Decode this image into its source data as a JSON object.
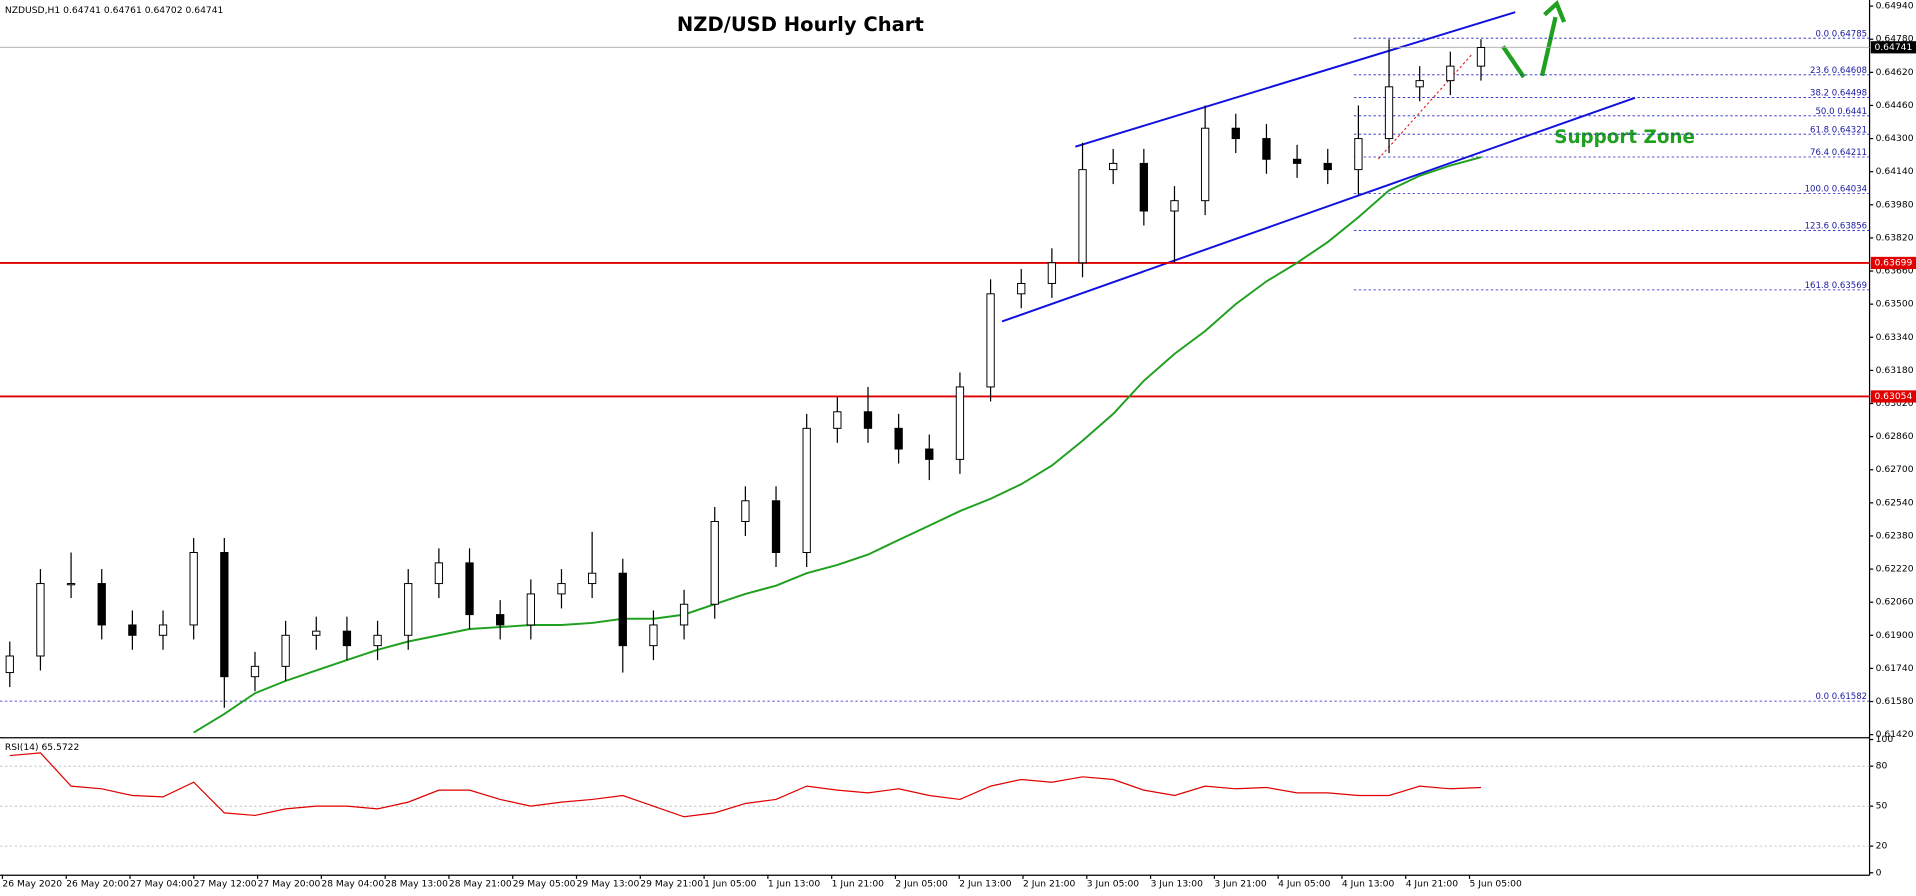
{
  "chart_data": {
    "type": "candlestick",
    "title": "NZD/USD Hourly Chart",
    "header": "NZDUSD,H1",
    "ohlc": [
      0.64741,
      0.64761,
      0.64702,
      0.64741
    ],
    "annotation": "Support Zone",
    "categories": [
      "26 May 2020",
      "26 May 20:00",
      "27 May 04:00",
      "27 May 12:00",
      "27 May 20:00",
      "28 May 04:00",
      "28 May 13:00",
      "28 May 21:00",
      "29 May 05:00",
      "29 May 13:00",
      "29 May 21:00",
      "1 Jun 05:00",
      "1 Jun 13:00",
      "1 Jun 21:00",
      "2 Jun 05:00",
      "2 Jun 13:00",
      "2 Jun 21:00",
      "3 Jun 05:00",
      "3 Jun 13:00",
      "3 Jun 21:00",
      "4 Jun 05:00",
      "4 Jun 13:00",
      "4 Jun 21:00",
      "5 Jun 05:00"
    ],
    "open": [
      0.6172,
      0.618,
      0.6215,
      0.6215,
      0.6195,
      0.619,
      0.6195,
      0.623,
      0.617,
      0.6175,
      0.619,
      0.6192,
      0.6185,
      0.619,
      0.6215,
      0.6225,
      0.62,
      0.6195,
      0.621,
      0.6215,
      0.622,
      0.6185,
      0.6195,
      0.6205,
      0.6245,
      0.6255,
      0.623,
      0.629,
      0.6298,
      0.629,
      0.628,
      0.6275,
      0.631,
      0.6355,
      0.636,
      0.637,
      0.6415,
      0.6418,
      0.6395,
      0.64,
      0.6435,
      0.643,
      0.642,
      0.6418,
      0.6415,
      0.643,
      0.6455,
      0.6458,
      0.6465
    ],
    "high": [
      0.6187,
      0.6222,
      0.623,
      0.6222,
      0.6202,
      0.6202,
      0.6237,
      0.6237,
      0.6182,
      0.6197,
      0.6199,
      0.6199,
      0.6197,
      0.6222,
      0.6232,
      0.6232,
      0.6207,
      0.6217,
      0.6222,
      0.624,
      0.6227,
      0.6202,
      0.6212,
      0.6252,
      0.6262,
      0.6262,
      0.6297,
      0.6305,
      0.631,
      0.6297,
      0.6287,
      0.6317,
      0.6362,
      0.6367,
      0.6377,
      0.6428,
      0.6425,
      0.6425,
      0.6407,
      0.6446,
      0.6442,
      0.6437,
      0.6427,
      0.6425,
      0.6446,
      0.6478,
      0.6465,
      0.6472,
      0.6478
    ],
    "low": [
      0.6165,
      0.6173,
      0.6208,
      0.6188,
      0.6183,
      0.6183,
      0.6188,
      0.6155,
      0.6163,
      0.6168,
      0.6183,
      0.6178,
      0.6178,
      0.6183,
      0.6208,
      0.6193,
      0.6188,
      0.6188,
      0.6203,
      0.6208,
      0.6172,
      0.6178,
      0.6188,
      0.6198,
      0.6238,
      0.6223,
      0.6223,
      0.6283,
      0.6283,
      0.6273,
      0.6265,
      0.6268,
      0.6303,
      0.6348,
      0.6353,
      0.6363,
      0.6408,
      0.6388,
      0.637,
      0.6393,
      0.6423,
      0.6413,
      0.6411,
      0.6408,
      0.6403,
      0.6423,
      0.6448,
      0.6451,
      0.6458
    ],
    "close": [
      0.618,
      0.6215,
      0.6215,
      0.6195,
      0.619,
      0.6195,
      0.623,
      0.617,
      0.6175,
      0.619,
      0.6192,
      0.6185,
      0.619,
      0.6215,
      0.6225,
      0.62,
      0.6195,
      0.621,
      0.6215,
      0.622,
      0.6185,
      0.6195,
      0.6205,
      0.6245,
      0.6255,
      0.623,
      0.629,
      0.6298,
      0.629,
      0.628,
      0.6275,
      0.631,
      0.6355,
      0.636,
      0.637,
      0.6415,
      0.6418,
      0.6395,
      0.64,
      0.6435,
      0.643,
      0.642,
      0.6418,
      0.6415,
      0.643,
      0.6455,
      0.6458,
      0.6465,
      0.6474
    ],
    "ma": {
      "color": "#1fa01f",
      "values": [
        null,
        null,
        null,
        null,
        null,
        null,
        0.6143,
        0.6152,
        0.6162,
        0.6168,
        0.6173,
        0.6178,
        0.6183,
        0.6187,
        0.619,
        0.6193,
        0.6194,
        0.6195,
        0.6195,
        0.6196,
        0.6198,
        0.6198,
        0.62,
        0.6205,
        0.621,
        0.6214,
        0.622,
        0.6224,
        0.6229,
        0.6236,
        0.6243,
        0.625,
        0.6256,
        0.6263,
        0.6272,
        0.6284,
        0.6297,
        0.6313,
        0.6326,
        0.6337,
        0.635,
        0.6361,
        0.637,
        0.638,
        0.6392,
        0.6405,
        0.6412,
        0.6417,
        0.6421
      ]
    },
    "ylim": [
      0.6142,
      0.6494
    ],
    "yticks": [
      {
        "value": 0.6494,
        "label": "0.64940"
      },
      {
        "value": 0.6478,
        "label": "0.64780"
      },
      {
        "value": 0.6462,
        "label": "0.64620"
      },
      {
        "value": 0.6446,
        "label": "0.64460"
      },
      {
        "value": 0.643,
        "label": "0.64300"
      },
      {
        "value": 0.6414,
        "label": "0.64140"
      },
      {
        "value": 0.6398,
        "label": "0.63980"
      },
      {
        "value": 0.6382,
        "label": "0.63820"
      },
      {
        "value": 0.6366,
        "label": "0.63660"
      },
      {
        "value": 0.635,
        "label": "0.63500"
      },
      {
        "value": 0.6334,
        "label": "0.63340"
      },
      {
        "value": 0.6318,
        "label": "0.63180"
      },
      {
        "value": 0.6302,
        "label": "0.63020"
      },
      {
        "value": 0.6286,
        "label": "0.62860"
      },
      {
        "value": 0.627,
        "label": "0.62700"
      },
      {
        "value": 0.6254,
        "label": "0.62540"
      },
      {
        "value": 0.6238,
        "label": "0.62380"
      },
      {
        "value": 0.6222,
        "label": "0.62220"
      },
      {
        "value": 0.6206,
        "label": "0.62060"
      },
      {
        "value": 0.619,
        "label": "0.61900"
      },
      {
        "value": 0.6174,
        "label": "0.61740"
      },
      {
        "value": 0.6158,
        "label": "0.61580"
      },
      {
        "value": 0.6142,
        "label": "0.61420"
      }
    ],
    "current_price": 0.64741,
    "levels": [
      {
        "value": 0.63699,
        "color": "#e00000"
      },
      {
        "value": 0.63054,
        "color": "#e00000"
      }
    ],
    "fib_levels": [
      {
        "level": "0.0",
        "price": 0.64785
      },
      {
        "level": "23.6",
        "price": 0.64608
      },
      {
        "level": "38.2",
        "price": 0.64498
      },
      {
        "level": "50.0",
        "price": 0.6441
      },
      {
        "level": "61.8",
        "price": 0.64321
      },
      {
        "level": "76.4",
        "price": 0.64211
      },
      {
        "level": "100.0",
        "price": 0.64034
      },
      {
        "level": "123.6",
        "price": 0.63856
      },
      {
        "level": "161.8",
        "price": 0.63569
      }
    ],
    "fib_base": {
      "level": "0.0",
      "price": 0.61582
    },
    "rsi": {
      "name": "RSI(14)",
      "current": 65.5722,
      "color": "#e00000",
      "values": [
        88,
        90,
        65,
        63,
        58,
        57,
        68,
        45,
        43,
        48,
        50,
        50,
        48,
        53,
        62,
        62,
        55,
        50,
        53,
        55,
        58,
        50,
        42,
        45,
        52,
        55,
        65,
        62,
        60,
        63,
        58,
        55,
        65,
        70,
        68,
        72,
        70,
        62,
        58,
        65,
        63,
        64,
        60,
        60,
        58,
        58,
        65,
        63,
        64
      ],
      "ylim": [
        0,
        100
      ],
      "yticks": [
        100,
        80,
        50,
        20,
        0
      ],
      "levels": [
        80,
        50,
        20
      ]
    }
  }
}
